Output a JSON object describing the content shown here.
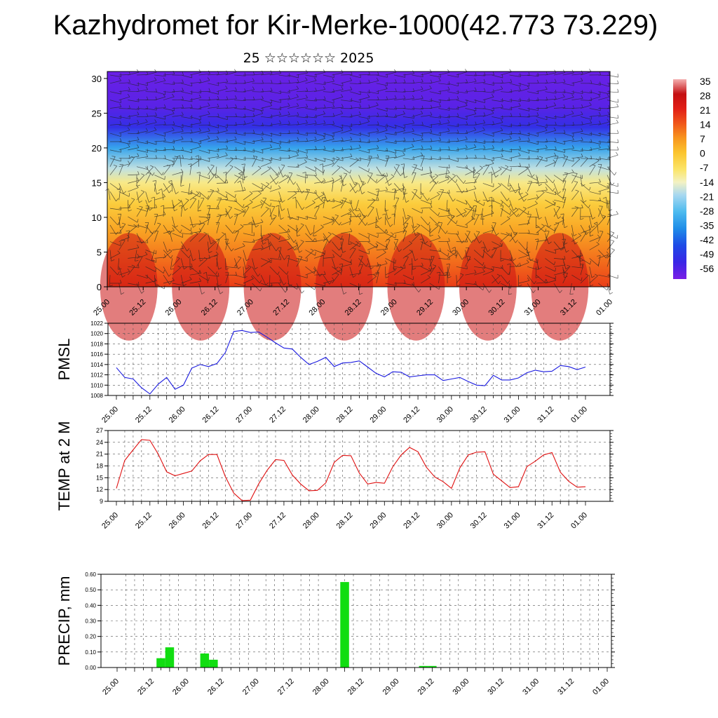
{
  "title": "Kazhydromet for Kir-Merke-1000(42.773 73.229)",
  "subtitle": "25 ☆☆☆☆☆☆ 2025",
  "time_labels": [
    "25.00",
    "25.12",
    "26.00",
    "26.12",
    "27.00",
    "27.12",
    "28.00",
    "28.12",
    "29.00",
    "29.12",
    "30.00",
    "30.12",
    "31.00",
    "31.12",
    "01.00"
  ],
  "chart_data": [
    {
      "type": "heatmap",
      "name": "temperature-wind-cross-section",
      "ylim": [
        0,
        31
      ],
      "yticks": [
        0,
        5,
        10,
        15,
        20,
        25,
        30
      ],
      "colorbar": {
        "labels": [
          "35",
          "28",
          "21",
          "14",
          "7",
          "0",
          "-7",
          "-14",
          "-21",
          "-28",
          "-35",
          "-42",
          "-49",
          "-56"
        ],
        "stops": [
          {
            "value": -60,
            "color": "#7a1ee6"
          },
          {
            "value": -52,
            "color": "#3a26e6"
          },
          {
            "value": -44,
            "color": "#1e4ae6"
          },
          {
            "value": -36,
            "color": "#1f8de8"
          },
          {
            "value": -28,
            "color": "#4dbbef"
          },
          {
            "value": -20,
            "color": "#a8d8f0"
          },
          {
            "value": -14,
            "color": "#f3f2c4"
          },
          {
            "value": -8,
            "color": "#fbe56a"
          },
          {
            "value": 0,
            "color": "#fbc52e"
          },
          {
            "value": 7,
            "color": "#f8961e"
          },
          {
            "value": 14,
            "color": "#f0561a"
          },
          {
            "value": 21,
            "color": "#e11e16"
          },
          {
            "value": 28,
            "color": "#c40f12"
          },
          {
            "value": 35,
            "color": "#f4b0b0"
          }
        ]
      },
      "profile": [
        {
          "height": 0,
          "temperature": 17
        },
        {
          "height": 4,
          "temperature": 11
        },
        {
          "height": 8,
          "temperature": 5
        },
        {
          "height": 12,
          "temperature": -2
        },
        {
          "height": 15,
          "temperature": -10
        },
        {
          "height": 17,
          "temperature": -18
        },
        {
          "height": 20,
          "temperature": -32
        },
        {
          "height": 23,
          "temperature": -50
        },
        {
          "height": 26,
          "temperature": -56
        },
        {
          "height": 31,
          "temperature": -58
        }
      ]
    },
    {
      "type": "line",
      "name": "pmsl",
      "ylabel": "PMSL",
      "ylim": [
        1008,
        1022
      ],
      "yticks": [
        "1008",
        "1010",
        "1012",
        "1014",
        "1016",
        "1018",
        "1020",
        "1022"
      ],
      "line_color": "#1a1ae0",
      "series": [
        {
          "values": [
            1013.4,
            1011.5,
            1011.2,
            1009.5,
            1008.3,
            1010.2,
            1011.5,
            1009.2,
            1010,
            1013.3,
            1014,
            1013.6,
            1014.2,
            1016.3,
            1020.4,
            1020.6,
            1020.2,
            1020.3,
            1019.3,
            1018.2,
            1017.2,
            1017,
            1015.4,
            1014,
            1014.6,
            1015.4,
            1013.6,
            1014.3,
            1014.4,
            1014.7,
            1013.5,
            1012.3,
            1011.6,
            1012.6,
            1012.5,
            1011.6,
            1011.8,
            1012,
            1012,
            1010.9,
            1011.2,
            1011.5,
            1010.7,
            1010,
            1009.9,
            1011.9,
            1011,
            1011,
            1011.4,
            1012.4,
            1012.9,
            1012.6,
            1012.7,
            1013.8,
            1013.6,
            1013,
            1013.5
          ]
        }
      ]
    },
    {
      "type": "line",
      "name": "temp-2m",
      "ylabel": "TEMP at 2 M",
      "ylim": [
        9,
        27
      ],
      "yticks": [
        "9",
        "12",
        "15",
        "18",
        "21",
        "24",
        "27"
      ],
      "line_color": "#e01010",
      "series": [
        {
          "values": [
            12.3,
            19.4,
            22.1,
            24.7,
            24.5,
            21,
            16.5,
            15.5,
            16.1,
            16.7,
            19.3,
            20.9,
            20.9,
            15.3,
            11.1,
            9.2,
            9.3,
            13.5,
            16.9,
            19.6,
            19.4,
            15.7,
            13.4,
            11.7,
            11.8,
            13.7,
            18.9,
            20.7,
            20.6,
            16.2,
            13.4,
            13.8,
            13.6,
            17.8,
            20.8,
            22.7,
            21.6,
            17.7,
            15.2,
            14,
            12.3,
            17.5,
            20.8,
            21.5,
            21.6,
            15.9,
            14.2,
            12.5,
            12.7,
            17.8,
            19.2,
            20.8,
            21.4,
            16.4,
            14.1,
            12.6,
            12.7
          ]
        }
      ]
    },
    {
      "type": "bar",
      "name": "precip",
      "ylabel": "PRECIP, mm",
      "ylim": [
        0,
        0.6
      ],
      "yticks": [
        "0.00",
        "0.10",
        "0.20",
        "0.30",
        "0.40",
        "0.50",
        "0.60"
      ],
      "bar_color": "#11dd11",
      "series": [
        {
          "values": [
            0,
            0,
            0,
            0,
            0,
            0.06,
            0.13,
            0,
            0,
            0,
            0.09,
            0.05,
            0,
            0,
            0,
            0,
            0,
            0,
            0,
            0,
            0,
            0,
            0,
            0,
            0,
            0,
            0.55,
            0,
            0,
            0,
            0,
            0,
            0,
            0,
            0,
            0.01,
            0.01,
            0,
            0,
            0,
            0,
            0,
            0,
            0,
            0,
            0,
            0,
            0,
            0,
            0,
            0,
            0,
            0,
            0,
            0,
            0,
            0
          ]
        }
      ]
    }
  ]
}
